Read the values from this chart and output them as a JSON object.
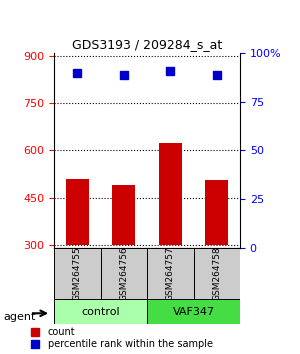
{
  "title": "GDS3193 / 209284_s_at",
  "samples": [
    "GSM264755",
    "GSM264756",
    "GSM264757",
    "GSM264758"
  ],
  "counts": [
    510,
    490,
    625,
    505
  ],
  "percentiles": [
    90,
    89,
    91,
    89
  ],
  "bar_color": "#cc0000",
  "dot_color": "#0000cc",
  "groups": [
    {
      "label": "control",
      "indices": [
        0,
        1
      ],
      "color": "#aaffaa"
    },
    {
      "label": "VAF347",
      "indices": [
        2,
        3
      ],
      "color": "#44dd44"
    }
  ],
  "ylim_left": [
    290,
    910
  ],
  "yticks_left": [
    300,
    450,
    600,
    750,
    900
  ],
  "ylim_right": [
    0,
    100
  ],
  "yticks_right": [
    0,
    25,
    50,
    75,
    100
  ],
  "ytick_right_labels": [
    "0",
    "25",
    "50",
    "75",
    "100%"
  ],
  "baseline": 300,
  "percentile_scale_min": 290,
  "percentile_scale_max": 910,
  "legend_count_label": "count",
  "legend_pct_label": "percentile rank within the sample",
  "agent_label": "agent",
  "sample_box_color": "#cccccc"
}
